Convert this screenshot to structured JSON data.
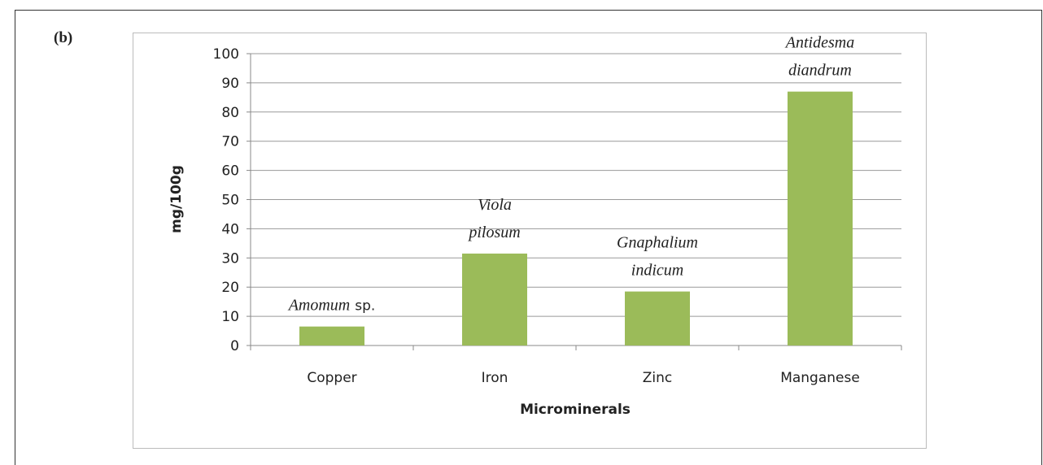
{
  "panel_label": "(b)",
  "chart_data": {
    "type": "bar",
    "categories": [
      "Copper",
      "Iron",
      "Zinc",
      "Manganese"
    ],
    "values": [
      6.5,
      31.5,
      18.5,
      87
    ],
    "color": "#9bbb59",
    "xlabel": "Microminerals",
    "ylabel": "mg/100g",
    "ylim": [
      0,
      100
    ],
    "yticks": [
      0,
      10,
      20,
      30,
      40,
      50,
      60,
      70,
      80,
      90,
      100
    ],
    "grid": true,
    "annotations": [
      [
        [
          {
            "text": "Amomum",
            "italic": true
          },
          {
            "text": "sp.",
            "italic": false
          }
        ]
      ],
      [
        [
          {
            "text": "Viola",
            "italic": true
          }
        ],
        [
          {
            "text": "pilosum",
            "italic": true
          }
        ]
      ],
      [
        [
          {
            "text": "Gnaphalium",
            "italic": true
          }
        ],
        [
          {
            "text": "indicum",
            "italic": true
          }
        ]
      ],
      [
        [
          {
            "text": "Antidesma",
            "italic": true
          }
        ],
        [
          {
            "text": "diandrum",
            "italic": true
          }
        ]
      ]
    ]
  }
}
